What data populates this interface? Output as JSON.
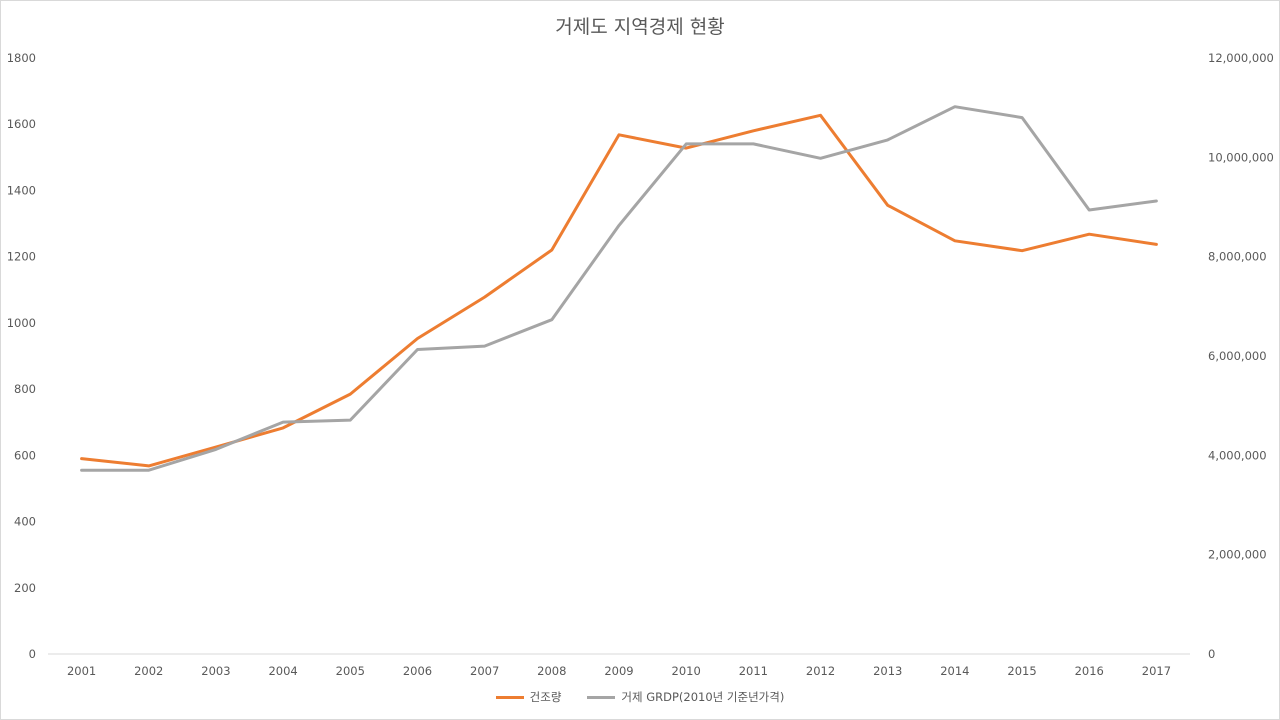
{
  "chart_data": {
    "type": "line",
    "title": "거제도 지역경제 현황",
    "xlabel": "",
    "ylabel": "",
    "ylabel_right": "",
    "categories": [
      "2001",
      "2002",
      "2003",
      "2004",
      "2005",
      "2006",
      "2007",
      "2008",
      "2009",
      "2010",
      "2011",
      "2012",
      "2013",
      "2014",
      "2015",
      "2016",
      "2017"
    ],
    "ylim": [
      0,
      1800
    ],
    "yticks": [
      "0",
      "200",
      "400",
      "600",
      "800",
      "1000",
      "1200",
      "1400",
      "1600",
      "1800"
    ],
    "ylim_right": [
      0,
      12000000
    ],
    "yticks_right": [
      "0",
      "2,000,000",
      "4,000,000",
      "6,000,000",
      "8,000,000",
      "10,000,000",
      "12,000,000"
    ],
    "grid": false,
    "legend_position": "bottom",
    "series": [
      {
        "name": "건조량",
        "axis": "left",
        "color": "#ed7d31",
        "values": [
          590,
          568,
          625,
          683,
          785,
          953,
          1078,
          1220,
          1568,
          1528,
          1580,
          1627,
          1355,
          1248,
          1218,
          1268,
          1237
        ]
      },
      {
        "name": "거제 GRDP(2010년 기준년가격)",
        "axis": "right",
        "color": "#a5a5a5",
        "values": [
          3700000,
          3700000,
          4120000,
          4670000,
          4710000,
          6130000,
          6200000,
          6730000,
          8630000,
          10270000,
          10270000,
          9980000,
          10350000,
          11020000,
          10800000,
          8940000,
          9120000
        ]
      }
    ]
  }
}
